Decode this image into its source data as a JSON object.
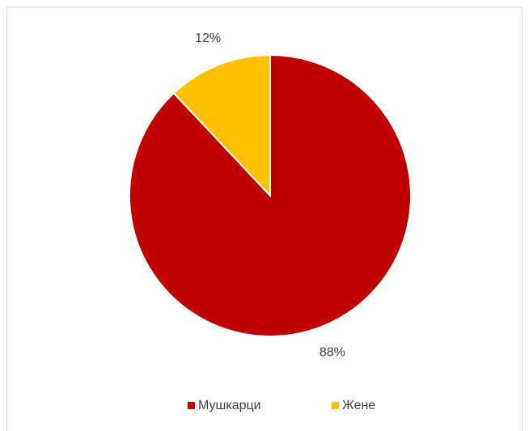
{
  "chart_data": {
    "type": "pie",
    "categories": [
      "Мушкарци",
      "Жене"
    ],
    "values": [
      88,
      12
    ],
    "value_labels": [
      "88%",
      "12%"
    ],
    "colors": [
      "#c00000",
      "#ffc000"
    ],
    "legend": "bottom"
  }
}
